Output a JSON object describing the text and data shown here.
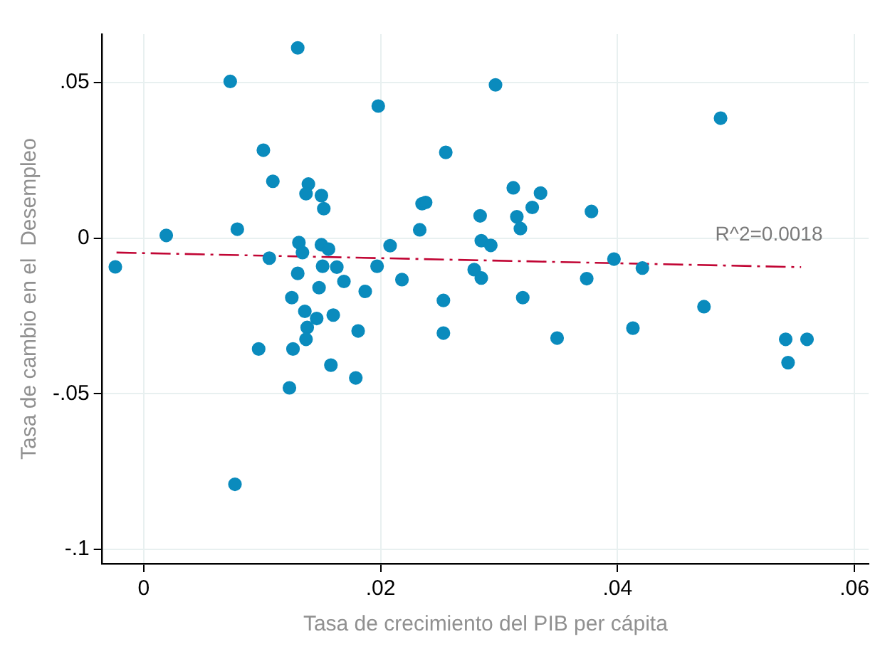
{
  "chart_data": {
    "type": "scatter",
    "xlabel": "Tasa de crecimiento del PIB per cápita",
    "ylabel": "Tasa de cambio en el  Desempleo",
    "xlim": [
      -0.0035,
      0.0612
    ],
    "ylim": [
      -0.1046,
      0.0656
    ],
    "xticks": [
      0,
      {
        "value": 0.02,
        "label": ".02"
      },
      {
        "value": 0.04,
        "label": ".04"
      },
      {
        "value": 0.06,
        "label": ".06"
      }
    ],
    "yticks": [
      {
        "value": -0.1,
        "label": "-.1"
      },
      {
        "value": -0.05,
        "label": "-.05"
      },
      0,
      {
        "value": 0.05,
        "label": ".05"
      }
    ],
    "grid": true,
    "legend": false,
    "marker": "circle",
    "annotations": [
      "R^2=0.0018"
    ],
    "series": [
      {
        "color": "#0a8bbd",
        "x": [
          -0.0024,
          0.0019,
          0.0073,
          0.013,
          0.0101,
          0.0109,
          0.0079,
          0.0139,
          0.0137,
          0.015,
          0.0152,
          0.0198,
          0.0255,
          0.0233,
          0.0235,
          0.0238,
          0.0284,
          0.0285,
          0.0131,
          0.0134,
          0.0106,
          0.015,
          0.0156,
          0.0151,
          0.0163,
          0.013,
          0.0169,
          0.0197,
          0.0208,
          0.0218,
          0.0279,
          0.0285,
          0.0125,
          0.0148,
          0.0187,
          0.0253,
          0.0136,
          0.0146,
          0.016,
          0.0138,
          0.0137,
          0.0181,
          0.0253,
          0.0097,
          0.0126,
          0.0158,
          0.0179,
          0.0123,
          0.0077,
          0.0297,
          0.0487,
          0.0312,
          0.0335,
          0.0328,
          0.0315,
          0.0318,
          0.0378,
          0.0293,
          0.0397,
          0.0421,
          0.0374,
          0.032,
          0.0473,
          0.0349,
          0.0413,
          0.0542,
          0.056,
          0.0544
        ],
        "values": [
          -0.0092,
          0.0009,
          0.0504,
          0.0612,
          0.0283,
          0.0183,
          0.0029,
          0.0174,
          0.0143,
          0.0137,
          0.0095,
          0.0425,
          0.0276,
          0.0027,
          0.0111,
          0.0115,
          0.0072,
          -0.0008,
          -0.0014,
          -0.0046,
          -0.0064,
          -0.0021,
          -0.0035,
          -0.009,
          -0.0093,
          -0.0113,
          -0.0139,
          -0.009,
          -0.0024,
          -0.0133,
          -0.0101,
          -0.0128,
          -0.0191,
          -0.0159,
          -0.0171,
          -0.02,
          -0.0235,
          -0.0258,
          -0.0247,
          -0.0287,
          -0.0325,
          -0.0298,
          -0.0305,
          -0.0356,
          -0.0356,
          -0.0408,
          -0.0449,
          -0.0481,
          -0.0791,
          0.0493,
          0.0386,
          0.0162,
          0.0145,
          0.0099,
          0.0069,
          0.0031,
          0.0086,
          -0.0023,
          -0.0067,
          -0.0096,
          -0.013,
          -0.0191,
          -0.022,
          -0.0321,
          -0.0289,
          -0.0325,
          -0.0325,
          -0.04
        ]
      },
      {
        "type": "line",
        "color": "#c10534",
        "marker": "none",
        "line_style": "dashed",
        "x": [
          -0.0023,
          0.0555
        ],
        "values": [
          -0.0046,
          -0.0093
        ]
      }
    ]
  }
}
